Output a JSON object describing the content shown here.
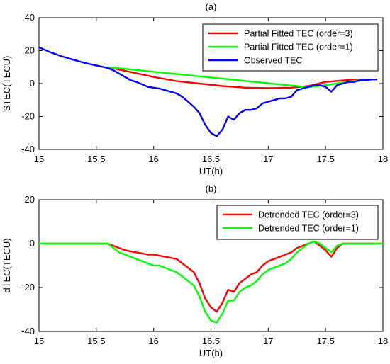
{
  "chart_data": [
    {
      "type": "line",
      "title": "(a)",
      "xlabel": "UT(h)",
      "ylabel": "STEC(TECU)",
      "xlim": [
        15,
        18
      ],
      "ylim": [
        -40,
        40
      ],
      "xticks": [
        "15",
        "15.5",
        "16",
        "16.5",
        "17",
        "17.5",
        "18"
      ],
      "yticks": [
        "-40",
        "-20",
        "0",
        "20",
        "40"
      ],
      "legend_position": "top-right",
      "grid": false,
      "series": [
        {
          "name": "Partial Fitted TEC (order=3)",
          "color": "#ff0000",
          "x": [
            15.6,
            15.8,
            16.0,
            16.2,
            16.4,
            16.6,
            16.8,
            17.0,
            17.2,
            17.35,
            17.5,
            17.7,
            17.85
          ],
          "y": [
            10,
            7,
            4,
            1.5,
            0,
            -1.5,
            -2.5,
            -2.8,
            -2.5,
            -1.5,
            1,
            2.2,
            2.5
          ]
        },
        {
          "name": "Partial Fitted TEC (order=1)",
          "color": "#00ff00",
          "x": [
            15.6,
            15.8,
            16.0,
            16.2,
            16.4,
            16.6,
            16.8,
            17.0,
            17.2,
            17.35,
            17.5,
            17.7,
            17.85
          ],
          "y": [
            10,
            8.6,
            7.2,
            5.8,
            4.4,
            3,
            1.6,
            0.2,
            -1.2,
            -2.2,
            -1,
            1.2,
            2.5
          ]
        },
        {
          "name": "Observed TEC",
          "color": "#0000ff",
          "x": [
            15.0,
            15.1,
            15.2,
            15.3,
            15.4,
            15.5,
            15.6,
            15.65,
            15.7,
            15.75,
            15.8,
            15.85,
            15.9,
            15.95,
            16.0,
            16.05,
            16.1,
            16.15,
            16.2,
            16.25,
            16.3,
            16.35,
            16.4,
            16.45,
            16.5,
            16.55,
            16.6,
            16.65,
            16.7,
            16.75,
            16.8,
            16.85,
            16.9,
            16.95,
            17.0,
            17.05,
            17.1,
            17.15,
            17.2,
            17.25,
            17.3,
            17.35,
            17.4,
            17.45,
            17.5,
            17.55,
            17.6,
            17.65,
            17.7,
            17.75,
            17.8,
            17.85,
            17.9,
            17.95
          ],
          "y": [
            22,
            19,
            16.5,
            14.5,
            12.5,
            11,
            9.5,
            8,
            6,
            4,
            2,
            1,
            -0.5,
            -2,
            -2.5,
            -3,
            -4,
            -5,
            -6,
            -8,
            -11,
            -14,
            -18,
            -25,
            -30,
            -32,
            -28,
            -20,
            -22,
            -18,
            -16,
            -16,
            -15,
            -12,
            -11,
            -10,
            -9,
            -9,
            -8,
            -4,
            -3,
            -2,
            -1,
            -1,
            -2,
            -5,
            -1,
            0,
            1,
            1,
            2,
            2,
            2.5,
            2.5
          ]
        }
      ]
    },
    {
      "type": "line",
      "title": "(b)",
      "xlabel": "UT(h)",
      "ylabel": "dTEC(TECU)",
      "xlim": [
        15,
        18
      ],
      "ylim": [
        -40,
        20
      ],
      "xticks": [
        "15",
        "15.5",
        "16",
        "16.5",
        "17",
        "17.5",
        "18"
      ],
      "yticks": [
        "-40",
        "-20",
        "0",
        "20"
      ],
      "legend_position": "top-right",
      "grid": false,
      "series": [
        {
          "name": "Detrended TEC (order=3)",
          "color": "#ff0000",
          "x": [
            15.0,
            15.6,
            15.65,
            15.7,
            15.75,
            15.8,
            15.85,
            15.9,
            15.95,
            16.0,
            16.05,
            16.1,
            16.15,
            16.2,
            16.25,
            16.3,
            16.35,
            16.4,
            16.45,
            16.5,
            16.55,
            16.6,
            16.65,
            16.7,
            16.75,
            16.8,
            16.85,
            16.9,
            16.95,
            17.0,
            17.05,
            17.1,
            17.15,
            17.2,
            17.25,
            17.3,
            17.35,
            17.4,
            17.45,
            17.5,
            17.55,
            17.6,
            17.65,
            17.7,
            17.75,
            17.8,
            17.85,
            18.0
          ],
          "y": [
            0,
            0,
            -1,
            -2,
            -3,
            -3.5,
            -4,
            -4.5,
            -5,
            -5,
            -5.5,
            -6,
            -6.5,
            -7,
            -9,
            -11,
            -13,
            -18,
            -25,
            -29,
            -31,
            -27,
            -21,
            -22,
            -18,
            -16,
            -14,
            -13,
            -10,
            -8,
            -7,
            -6,
            -5,
            -4,
            -2,
            -1,
            0,
            1,
            -1,
            -3,
            -6,
            -2,
            0,
            0,
            0,
            0,
            0,
            0
          ]
        },
        {
          "name": "Detrended TEC (order=1)",
          "color": "#00ff00",
          "x": [
            15.0,
            15.6,
            15.65,
            15.7,
            15.75,
            15.8,
            15.85,
            15.9,
            15.95,
            16.0,
            16.05,
            16.1,
            16.15,
            16.2,
            16.25,
            16.3,
            16.35,
            16.4,
            16.45,
            16.5,
            16.55,
            16.6,
            16.65,
            16.7,
            16.75,
            16.8,
            16.85,
            16.9,
            16.95,
            17.0,
            17.05,
            17.1,
            17.15,
            17.2,
            17.25,
            17.3,
            17.35,
            17.4,
            17.45,
            17.5,
            17.55,
            17.6,
            17.65,
            17.7,
            17.75,
            17.8,
            17.85,
            18.0
          ],
          "y": [
            0,
            0,
            -2,
            -4,
            -5,
            -6,
            -7,
            -8,
            -9,
            -10,
            -10,
            -11,
            -12,
            -13,
            -15,
            -17,
            -19,
            -24,
            -31,
            -35,
            -36,
            -32,
            -26,
            -26,
            -22,
            -20,
            -19,
            -17,
            -14,
            -12,
            -11,
            -10,
            -9,
            -7,
            -4,
            -2,
            0,
            1,
            0,
            -2,
            -4,
            -1,
            0,
            0,
            0,
            0,
            0,
            0
          ]
        }
      ]
    }
  ]
}
